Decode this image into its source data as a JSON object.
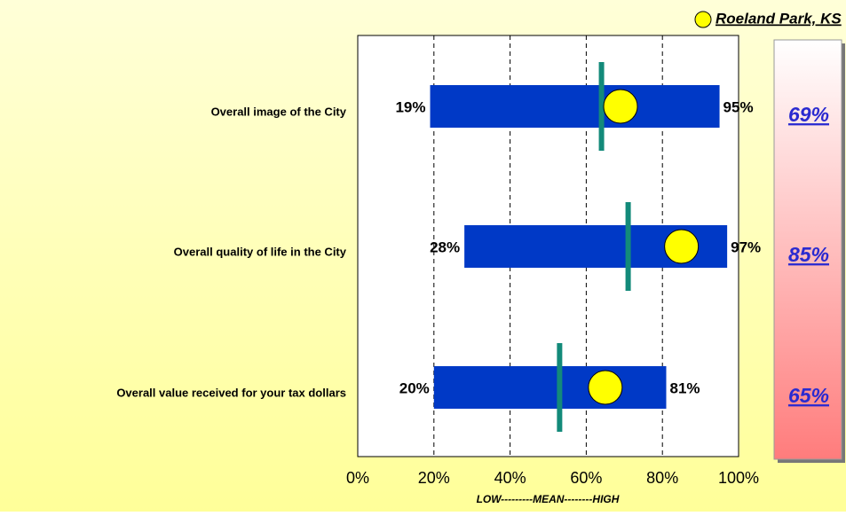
{
  "chart_data": {
    "type": "range",
    "categories": [
      "Overall image of the City",
      "Overall quality of life in the City",
      "Overall value received for your tax dollars"
    ],
    "low": {
      "values": [
        19,
        28,
        20
      ],
      "value_labels": [
        "19%",
        "28%",
        "20%"
      ],
      "color": "#0039c6"
    },
    "high": {
      "values": [
        95,
        97,
        81
      ],
      "value_labels": [
        "95%",
        "97%",
        "81%"
      ]
    },
    "mean": {
      "values": [
        64,
        71,
        53
      ],
      "color": "#138a7a"
    },
    "city": {
      "name": "Roeland Park, KS",
      "values": [
        69,
        85,
        65
      ],
      "value_labels": [
        "69%",
        "85%",
        "65%"
      ],
      "color": "#ffff00"
    },
    "xlim": [
      0,
      100
    ],
    "xticks": [
      {
        "value": 0,
        "label": "0%"
      },
      {
        "value": 20,
        "label": "20%"
      },
      {
        "value": 40,
        "label": "40%"
      },
      {
        "value": 60,
        "label": "60%"
      },
      {
        "value": 80,
        "label": "80%"
      },
      {
        "value": 100,
        "label": "100%"
      }
    ],
    "xlabel": "LOW---------MEAN--------HIGH",
    "grid": true
  }
}
